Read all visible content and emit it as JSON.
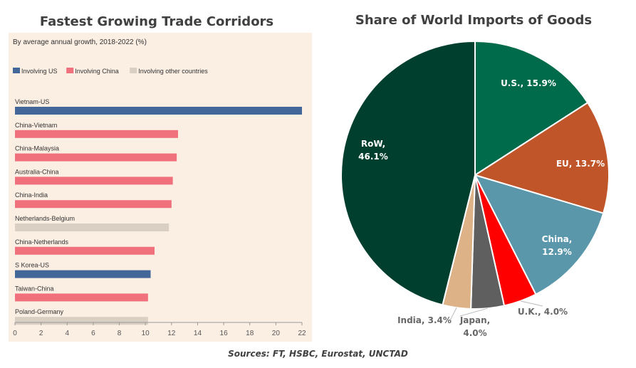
{
  "left_title": "Fastest Growing Trade Corridors",
  "right_title": "Share of World Imports of Goods",
  "source": "Sources: FT, HSBC, Eurostat, UNCTAD",
  "colors": {
    "us": "#44679a",
    "china": "#f0707c",
    "other": "#d9cfc3",
    "panel_bg": "#fbeee3"
  },
  "chart_data": [
    {
      "type": "bar",
      "orientation": "horizontal",
      "subtitle": "By average annual growth, 2018-2022 (%)",
      "legend": [
        {
          "key": "us",
          "label": "Involving US",
          "color": "#44679a"
        },
        {
          "key": "china",
          "label": "Involving China",
          "color": "#f0707c"
        },
        {
          "key": "other",
          "label": "Involving other countries",
          "color": "#d9cfc3"
        }
      ],
      "legend_position": "top-left",
      "categories": [
        "Vietnam-US",
        "China-Vietnam",
        "China-Malaysia",
        "Australia-China",
        "China-India",
        "Netherlands-Belgium",
        "China-Netherlands",
        "S Korea-US",
        "Taiwan-China",
        "Poland-Germany"
      ],
      "values": [
        22.0,
        12.5,
        12.4,
        12.1,
        12.0,
        11.8,
        10.7,
        10.4,
        10.2,
        10.2
      ],
      "groups": [
        "us",
        "china",
        "china",
        "china",
        "china",
        "other",
        "china",
        "us",
        "china",
        "other"
      ],
      "xlim": [
        0,
        22
      ],
      "xticks": [
        "0",
        "2",
        "4",
        "6",
        "8",
        "10",
        "12",
        "14",
        "16",
        "18",
        "20",
        "22"
      ],
      "grid": false
    },
    {
      "type": "pie",
      "slices": [
        {
          "label": "U.S., 15.9%",
          "value": 15.9,
          "color": "#006b4a",
          "label_color": "#ffffff",
          "inside": true
        },
        {
          "label": "EU, 13.7%",
          "value": 13.7,
          "color": "#c1552a",
          "label_color": "#ffffff",
          "inside": true
        },
        {
          "label": "China,\n12.9%",
          "value": 12.9,
          "color": "#5b97ab",
          "label_color": "#ffffff",
          "inside": true
        },
        {
          "label": "U.K., 4.0%",
          "value": 4.0,
          "color": "#ff0000",
          "label_color": "#666666",
          "inside": false
        },
        {
          "label": "Japan,\n4.0%",
          "value": 4.0,
          "color": "#5f5f5f",
          "label_color": "#666666",
          "inside": false
        },
        {
          "label": "India, 3.4%",
          "value": 3.4,
          "color": "#deb287",
          "label_color": "#666666",
          "inside": false
        },
        {
          "label": "RoW,\n46.1%",
          "value": 46.1,
          "color": "#003f2d",
          "label_color": "#ffffff",
          "inside": true
        }
      ]
    }
  ]
}
